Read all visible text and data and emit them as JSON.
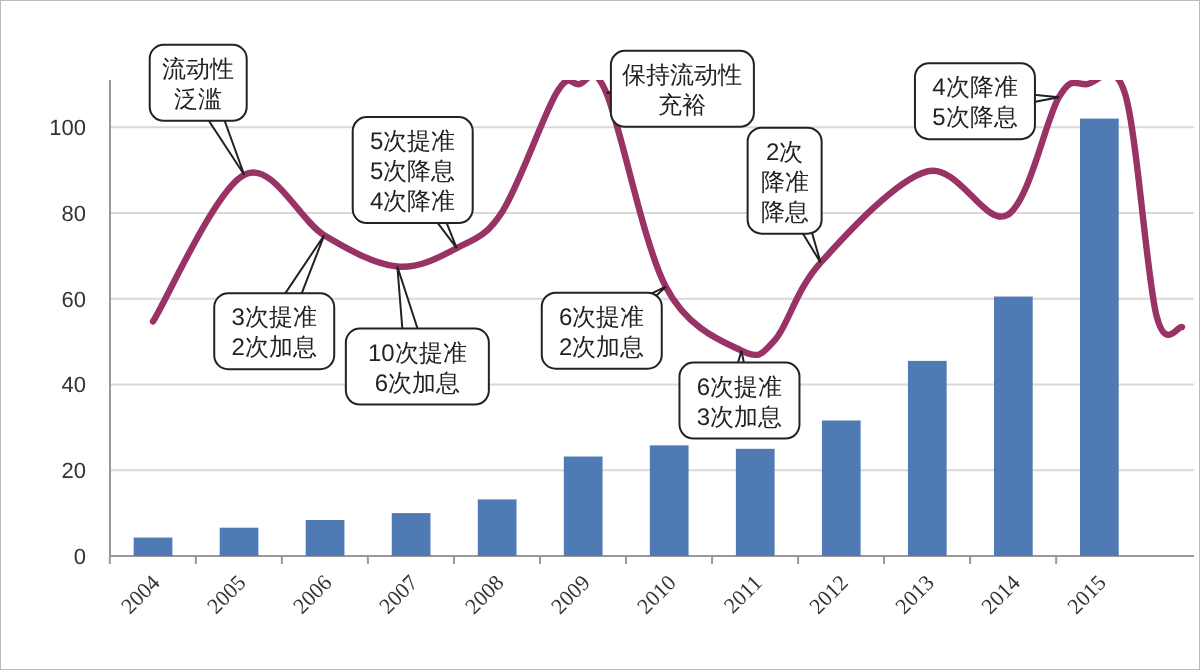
{
  "chart_data": {
    "type": "bar",
    "x": [
      2004,
      2005,
      2006,
      2007,
      2008,
      2009,
      2010,
      2011,
      2012,
      2013,
      2014,
      2015
    ],
    "xlim": [
      2003.5,
      2016.1
    ],
    "xticks": [
      2004,
      2005,
      2006,
      2007,
      2008,
      2009,
      2010,
      2011,
      2012,
      2013,
      2014,
      2015
    ],
    "ylim": [
      0,
      111
    ],
    "yticks": [
      0,
      20,
      40,
      60,
      80,
      100
    ],
    "grid": "y",
    "series": [
      {
        "color": "#4f7ab3",
        "values": [
          4.3,
          6.6,
          8.4,
          10,
          13.2,
          23.2,
          25.8,
          25,
          31.6,
          45.5,
          60.5,
          102
        ]
      },
      {
        "type": "line",
        "color": "#993366",
        "x": [
          2004,
          2005.06,
          2005.99,
          2006.84,
          2007.53,
          2008.06,
          2008.69,
          2008.95,
          2009.27,
          2009.96,
          2010.84,
          2011.23,
          2011.76,
          2013.0,
          2013.93,
          2014.53,
          2014.85,
          2015.3,
          2015.66,
          2015.96
        ],
        "values": [
          54.7,
          88.9,
          74.8,
          67.5,
          71.8,
          80.3,
          108,
          110,
          108,
          62.8,
          47.9,
          50.4,
          68.4,
          89.7,
          79.5,
          107,
          110,
          107.7,
          56.4,
          53.4
        ]
      }
    ],
    "annotations": [
      {
        "text": "流动性泛滥",
        "x": 2005.06,
        "y": 88.9
      },
      {
        "text": "3次提准\n2次加息",
        "x": 2005.99,
        "y": 74.8
      },
      {
        "text": "5次提准\n5次降息\n4次降准",
        "x": 2007.53,
        "y": 71.8
      },
      {
        "text": "10次提准\n6次加息",
        "x": 2006.84,
        "y": 67.5
      },
      {
        "text": "保持流动性充裕",
        "x": 2009.27,
        "y": 108
      },
      {
        "text": "6次提准\n2次加息",
        "x": 2009.96,
        "y": 62.8
      },
      {
        "text": "6次提准\n3次加息",
        "x": 2010.84,
        "y": 47.9
      },
      {
        "text": "2次降准降息",
        "x": 2011.76,
        "y": 68.4
      },
      {
        "text": "4次降准\n5次降息",
        "x": 2014.53,
        "y": 107
      }
    ]
  }
}
